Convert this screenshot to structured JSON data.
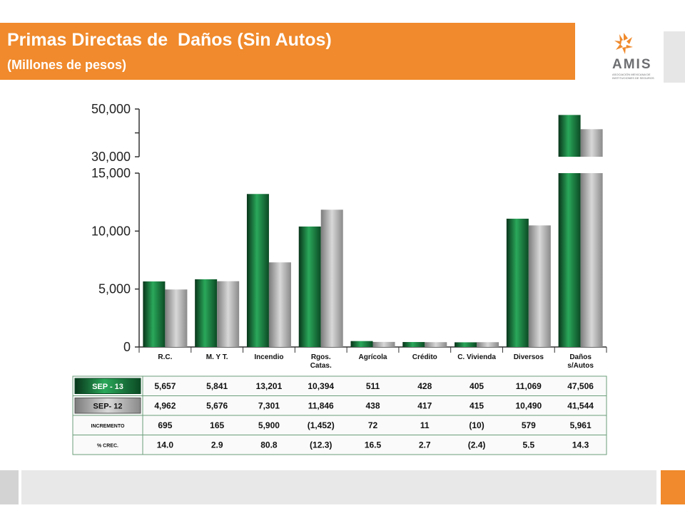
{
  "header": {
    "title": "Primas Directas de  Daños (Sin Autos)",
    "subtitle": "(Millones de pesos)"
  },
  "logo": {
    "name": "AMIS",
    "subtitle": "ASOCIACIÓN MEXICANA DE INSTITUCIONES DE SEGUROS",
    "color": "#f08a2c"
  },
  "chart_data": {
    "type": "bar",
    "categories": [
      "R.C.",
      "M. Y T.",
      "Incendio",
      "Rgos.\nCatas.",
      "Agrícola",
      "Crédito",
      "C. Vivienda",
      "Diversos",
      "Daños\ns/Autos"
    ],
    "series": [
      {
        "name": "SEP - 13",
        "values": [
          5657,
          5841,
          13201,
          10394,
          511,
          428,
          405,
          11069,
          47506
        ],
        "color": "#1a8a3a"
      },
      {
        "name": "SEP - 12",
        "values": [
          4962,
          5676,
          7301,
          11846,
          438,
          417,
          415,
          10490,
          41544
        ],
        "color": "#a8a8a8"
      }
    ],
    "y_ticks_lower": [
      "0",
      "5,000",
      "10,000",
      "15,000"
    ],
    "y_ticks_upper": [
      "30,000",
      "50,000"
    ],
    "ylim_lower": [
      0,
      15000
    ],
    "ylim_upper": [
      30000,
      50000
    ],
    "axis_break": true,
    "grid": false
  },
  "table": {
    "rows": [
      {
        "label": "SEP - 13",
        "cells": [
          "5,657",
          "5,841",
          "13,201",
          "10,394",
          "511",
          "428",
          "405",
          "11,069",
          "47,506"
        ]
      },
      {
        "label": "SEP- 12",
        "cells": [
          "4,962",
          "5,676",
          "7,301",
          "11,846",
          "438",
          "417",
          "415",
          "10,490",
          "41,544"
        ]
      },
      {
        "label": "INCREMENTO",
        "cells": [
          "695",
          "165",
          "5,900",
          "(1,452)",
          "72",
          "11",
          "(10)",
          "579",
          "5,961"
        ]
      },
      {
        "label": "% CREC.",
        "cells": [
          "14.0",
          "2.9",
          "80.8",
          "(12.3)",
          "16.5",
          "2.7",
          "(2.4)",
          "5.5",
          "14.3"
        ]
      }
    ]
  }
}
